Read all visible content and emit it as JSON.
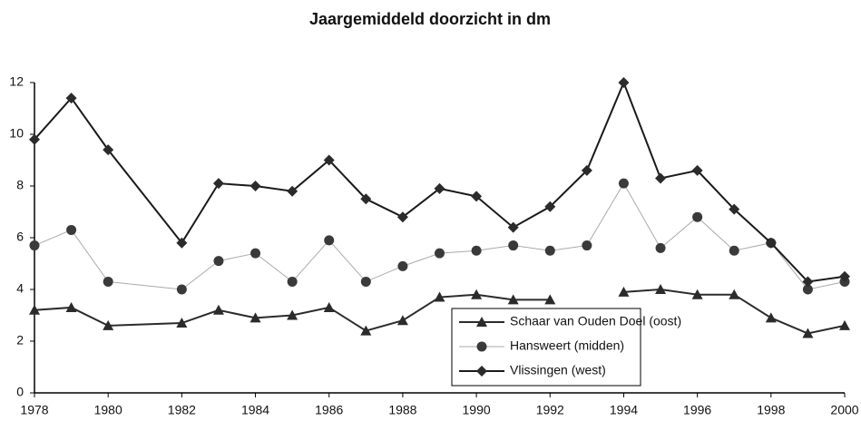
{
  "chart_data": {
    "type": "line",
    "title": "Jaargemiddeld doorzicht in dm",
    "x": [
      1978,
      1979,
      1980,
      1982,
      1983,
      1984,
      1985,
      1986,
      1987,
      1988,
      1989,
      1990,
      1991,
      1992,
      1993,
      1994,
      1995,
      1996,
      1997,
      1998,
      1999,
      2000
    ],
    "xlim": [
      1978,
      2000
    ],
    "xticks": [
      1978,
      1980,
      1982,
      1984,
      1986,
      1988,
      1990,
      1992,
      1994,
      1996,
      1998,
      2000
    ],
    "ylim": [
      0,
      12
    ],
    "yticks": [
      0,
      2,
      4,
      6,
      8,
      10,
      12
    ],
    "grid": false,
    "legend": "bottom-right",
    "series": [
      {
        "name": "Schaar van Ouden Doel (oost)",
        "color": "#2b2b2b",
        "line_color": "#2b2b2b",
        "line_width": 2,
        "marker": "triangle",
        "values": [
          3.2,
          3.3,
          2.6,
          2.7,
          3.2,
          2.9,
          3.0,
          3.3,
          2.4,
          2.8,
          3.7,
          3.8,
          3.6,
          3.6,
          null,
          3.9,
          4.0,
          3.8,
          3.8,
          2.9,
          2.3,
          2.6
        ]
      },
      {
        "name": "Hansweert (midden)",
        "color": "#3a3a3a",
        "line_color": "#aaaaaa",
        "line_width": 1,
        "marker": "circle",
        "values": [
          5.7,
          6.3,
          4.3,
          4.0,
          5.1,
          5.4,
          4.3,
          5.9,
          4.3,
          4.9,
          5.4,
          5.5,
          5.7,
          5.5,
          5.7,
          8.1,
          5.6,
          6.8,
          5.5,
          5.8,
          4.0,
          4.3
        ]
      },
      {
        "name": "Vlissingen (west)",
        "color": "#2b2b2b",
        "line_color": "#1a1a1a",
        "line_width": 2,
        "marker": "diamond",
        "values": [
          9.8,
          11.4,
          9.4,
          5.8,
          8.1,
          8.0,
          7.8,
          9.0,
          7.5,
          6.8,
          7.9,
          7.6,
          6.4,
          7.2,
          8.6,
          12.0,
          8.3,
          8.6,
          7.1,
          5.8,
          4.3,
          4.5
        ]
      }
    ]
  }
}
